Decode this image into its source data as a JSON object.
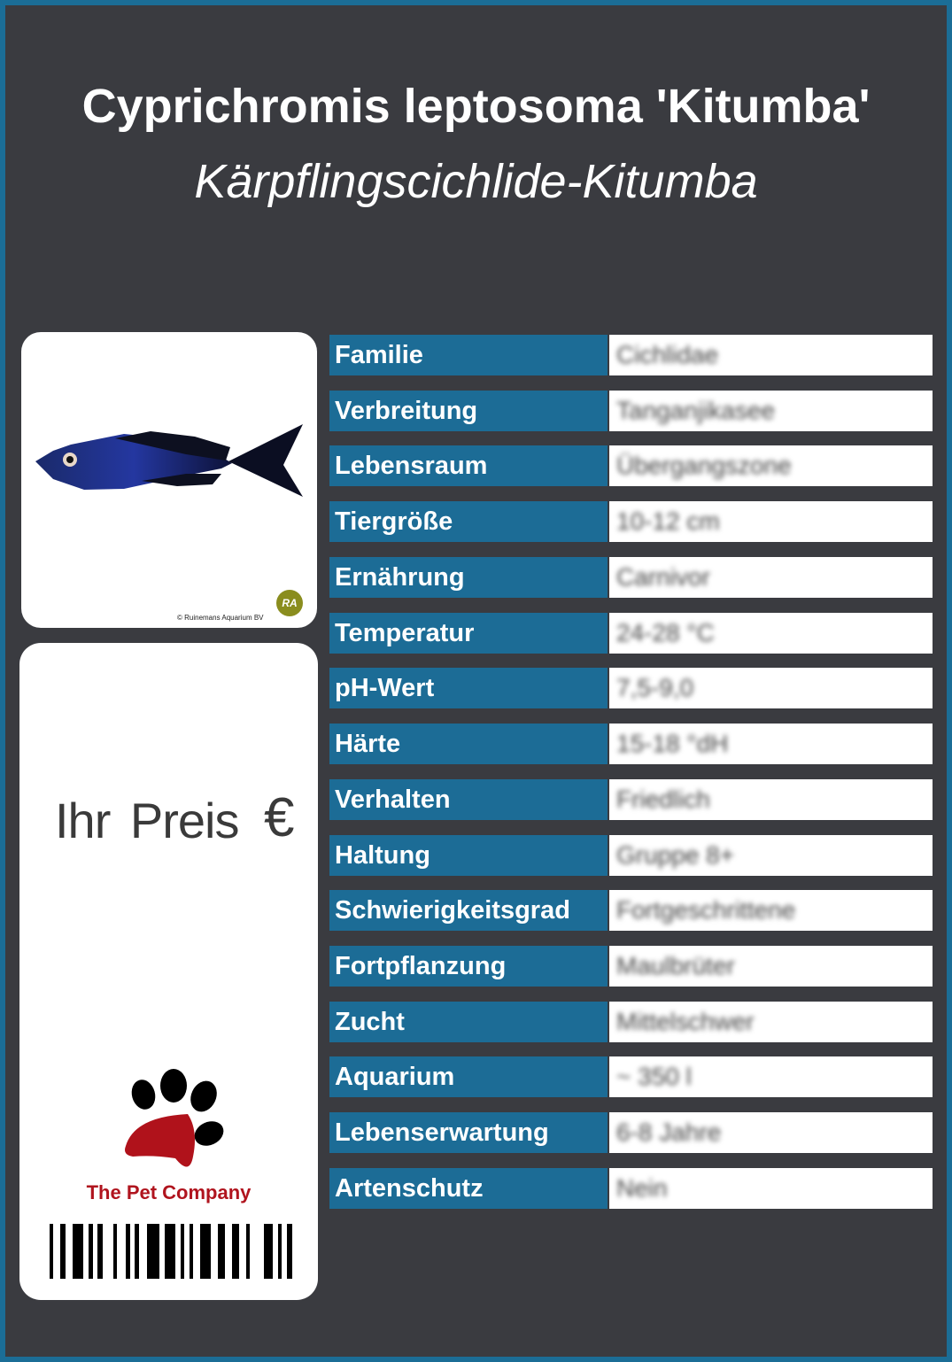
{
  "title": "Cyprichromis leptosoma 'Kitumba'",
  "subtitle": "Kärpflingscichlide-Kitumba",
  "photo": {
    "copyright": "© Ruinemans Aquarium BV",
    "logo_text": "RA"
  },
  "price": {
    "label": "Ihr Preis",
    "currency": "€"
  },
  "brand": {
    "name": "The Pet Company"
  },
  "colors": {
    "background": "#3a3b40",
    "accent": "#1c6c96",
    "brand_red": "#b0141e"
  },
  "rows": [
    {
      "label": "Familie",
      "value": "Cichlidae"
    },
    {
      "label": "Verbreitung",
      "value": "Tanganjikasee"
    },
    {
      "label": "Lebensraum",
      "value": "Übergangszone"
    },
    {
      "label": "Tiergröße",
      "value": "10-12 cm"
    },
    {
      "label": "Ernährung",
      "value": "Carnivor"
    },
    {
      "label": "Temperatur",
      "value": "24-28 °C"
    },
    {
      "label": "pH-Wert",
      "value": "7,5-9,0"
    },
    {
      "label": "Härte",
      "value": "15-18 °dH"
    },
    {
      "label": "Verhalten",
      "value": "Friedlich"
    },
    {
      "label": "Haltung",
      "value": "Gruppe 8+"
    },
    {
      "label": "Schwierigkeitsgrad",
      "value": "Fortgeschrittene"
    },
    {
      "label": "Fortpflanzung",
      "value": "Maulbrüter"
    },
    {
      "label": "Zucht",
      "value": "Mittelschwer"
    },
    {
      "label": "Aquarium",
      "value": "~ 350 l"
    },
    {
      "label": "Lebenserwartung",
      "value": "6-8 Jahre"
    },
    {
      "label": "Artenschutz",
      "value": "Nein"
    }
  ]
}
